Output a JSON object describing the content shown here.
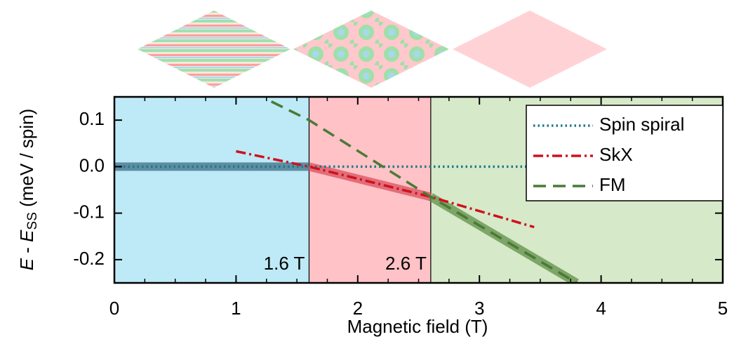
{
  "chart_data": {
    "type": "line",
    "xlabel": "Magnetic field (T)",
    "ylabel_parts": [
      "E",
      " - ",
      "E",
      "SS",
      " (meV / spin)"
    ],
    "xlim": [
      0,
      5
    ],
    "xticks": [
      0,
      1,
      2,
      3,
      4,
      5
    ],
    "ylim": [
      -0.25,
      0.15
    ],
    "yticks": [
      -0.2,
      -0.1,
      {
        "value": 0,
        "label": "0.0"
      },
      0.1
    ],
    "legend": "upper right",
    "regions": [
      {
        "from": 0,
        "to": 1.6,
        "color": "#bdeaf6",
        "series": 0,
        "band_color": "#3f6d86"
      },
      {
        "from": 1.6,
        "to": 2.6,
        "color": "#ffc2c6",
        "label": "1.6 T",
        "series": 1,
        "band_color": "#d8505e"
      },
      {
        "from": 2.6,
        "to": 5,
        "color": "#d6e9c9",
        "label": "2.6 T",
        "series": 2,
        "band_color": "#5f8d45"
      }
    ],
    "series": [
      {
        "name": "Spin spiral",
        "color": "#1f7a8c",
        "style": "dotted",
        "x": [
          0,
          1.6,
          2.6,
          5
        ],
        "values": [
          0,
          0,
          0,
          0
        ]
      },
      {
        "name": "SkX",
        "color": "#d0101e",
        "style": "dashdot",
        "x": [
          1,
          1.6,
          2.6,
          3.45
        ],
        "values": [
          0.033,
          0,
          -0.065,
          -0.13
        ]
      },
      {
        "name": "FM",
        "color": "#4a7a35",
        "style": "dashed",
        "x": [
          1.29,
          1.6,
          2.6,
          3.8
        ],
        "values": [
          0.14,
          0.1,
          -0.065,
          -0.25
        ]
      }
    ]
  }
}
